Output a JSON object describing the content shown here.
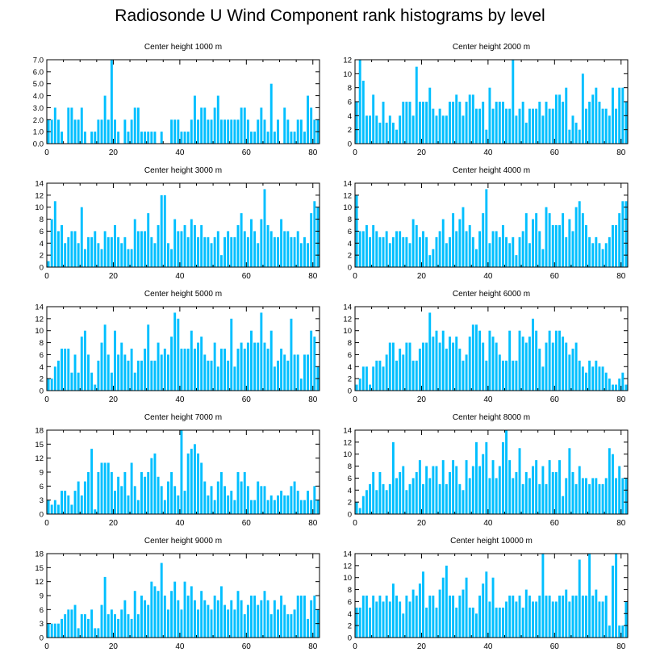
{
  "title": "Radiosonde U Wind Component rank histograms by level",
  "colors": {
    "bar": "#00bfff",
    "axis": "#000000",
    "background": "#ffffff"
  },
  "chart_data": [
    {
      "type": "bar",
      "title": "Center height 1000 m",
      "xticks": [
        0,
        20,
        40,
        60,
        80
      ],
      "xlim": [
        0,
        82
      ],
      "ylim": [
        0,
        7
      ],
      "yticks": [
        0,
        1,
        2,
        3,
        4,
        5,
        6,
        7
      ],
      "ytick_labels": [
        "0.0",
        "1.0",
        "2.0",
        "3.0",
        "4.0",
        "5.0",
        "6.0",
        "7.0"
      ],
      "values": [
        2,
        2,
        3,
        2,
        1,
        0,
        3,
        3,
        2,
        2,
        3,
        1,
        0,
        1,
        1,
        2,
        2,
        4,
        2,
        7,
        2,
        1,
        0,
        2,
        1,
        2,
        3,
        3,
        1,
        1,
        1,
        1,
        1,
        0,
        1,
        0,
        0,
        2,
        2,
        2,
        1,
        1,
        1,
        2,
        4,
        2,
        3,
        3,
        2,
        2,
        3,
        4,
        2,
        2,
        2,
        2,
        2,
        2,
        3,
        3,
        2,
        1,
        1,
        2,
        3,
        2,
        1,
        5,
        1,
        2,
        0,
        3,
        2,
        1,
        1,
        2,
        2,
        1,
        4,
        3,
        2,
        2
      ]
    },
    {
      "type": "bar",
      "title": "Center height 2000 m",
      "xticks": [
        0,
        20,
        40,
        60,
        80
      ],
      "xlim": [
        0,
        82
      ],
      "ylim": [
        0,
        12
      ],
      "yticks": [
        0,
        2,
        4,
        6,
        8,
        10,
        12
      ],
      "ytick_labels": [
        "0",
        "2",
        "4",
        "6",
        "8",
        "10",
        "12"
      ],
      "values": [
        6,
        12,
        9,
        4,
        4,
        7,
        4,
        3,
        6,
        3,
        4,
        3,
        2,
        4,
        6,
        6,
        6,
        4,
        11,
        6,
        6,
        6,
        8,
        5,
        4,
        5,
        4,
        4,
        6,
        6,
        7,
        6,
        4,
        6,
        7,
        7,
        5,
        5,
        6,
        2,
        8,
        5,
        6,
        6,
        6,
        5,
        5,
        12,
        4,
        5,
        6,
        3,
        5,
        5,
        5,
        6,
        4,
        6,
        5,
        5,
        7,
        7,
        6,
        8,
        2,
        4,
        3,
        2,
        10,
        5,
        6,
        7,
        8,
        6,
        5,
        5,
        4,
        8,
        5,
        8,
        8,
        6
      ]
    },
    {
      "type": "bar",
      "title": "Center height 3000 m",
      "xticks": [
        0,
        20,
        40,
        60,
        80
      ],
      "xlim": [
        0,
        82
      ],
      "ylim": [
        0,
        14
      ],
      "yticks": [
        0,
        2,
        4,
        6,
        8,
        10,
        12,
        14
      ],
      "ytick_labels": [
        "0",
        "2",
        "4",
        "6",
        "8",
        "10",
        "12",
        "14"
      ],
      "values": [
        1,
        8,
        11,
        6,
        7,
        4,
        5,
        6,
        6,
        4,
        10,
        3,
        5,
        5,
        6,
        4,
        3,
        6,
        5,
        5,
        7,
        5,
        4,
        5,
        3,
        3,
        8,
        6,
        6,
        6,
        9,
        5,
        4,
        7,
        12,
        12,
        4,
        3,
        8,
        6,
        6,
        7,
        5,
        8,
        7,
        5,
        7,
        5,
        5,
        4,
        5,
        6,
        2,
        5,
        6,
        5,
        5,
        7,
        9,
        6,
        5,
        8,
        6,
        4,
        8,
        13,
        7,
        6,
        5,
        5,
        8,
        6,
        6,
        5,
        5,
        6,
        4,
        5,
        4,
        9,
        11,
        10
      ]
    },
    {
      "type": "bar",
      "title": "Center height 4000 m",
      "xticks": [
        0,
        20,
        40,
        60,
        80
      ],
      "xlim": [
        0,
        82
      ],
      "ylim": [
        0,
        14
      ],
      "yticks": [
        0,
        2,
        4,
        6,
        8,
        10,
        12,
        14
      ],
      "ytick_labels": [
        "0",
        "2",
        "4",
        "6",
        "8",
        "10",
        "12",
        "14"
      ],
      "values": [
        12,
        6,
        6,
        7,
        5,
        7,
        6,
        5,
        5,
        6,
        4,
        5,
        6,
        6,
        5,
        5,
        4,
        8,
        7,
        5,
        6,
        5,
        2,
        3,
        5,
        6,
        8,
        4,
        5,
        9,
        6,
        8,
        10,
        6,
        7,
        5,
        3,
        6,
        9,
        13,
        4,
        6,
        6,
        5,
        7,
        5,
        4,
        5,
        2,
        5,
        6,
        9,
        4,
        8,
        9,
        6,
        3,
        10,
        9,
        7,
        7,
        7,
        9,
        5,
        8,
        6,
        10,
        11,
        9,
        7,
        5,
        4,
        5,
        4,
        3,
        4,
        5,
        7,
        7,
        9,
        11,
        11
      ]
    },
    {
      "type": "bar",
      "title": "Center height 5000 m",
      "xticks": [
        0,
        20,
        40,
        60,
        80
      ],
      "xlim": [
        0,
        82
      ],
      "ylim": [
        0,
        14
      ],
      "yticks": [
        0,
        2,
        4,
        6,
        8,
        10,
        12,
        14
      ],
      "ytick_labels": [
        "0",
        "2",
        "4",
        "6",
        "8",
        "10",
        "12",
        "14"
      ],
      "values": [
        2,
        2,
        4,
        5,
        7,
        7,
        7,
        3,
        6,
        3,
        9,
        10,
        6,
        3,
        1,
        5,
        8,
        11,
        6,
        3,
        10,
        6,
        8,
        6,
        5,
        7,
        3,
        5,
        5,
        7,
        11,
        5,
        5,
        8,
        6,
        7,
        6,
        9,
        13,
        12,
        7,
        7,
        7,
        10,
        7,
        8,
        9,
        6,
        5,
        5,
        8,
        4,
        7,
        7,
        5,
        12,
        4,
        7,
        8,
        7,
        8,
        10,
        8,
        8,
        13,
        8,
        7,
        10,
        4,
        5,
        7,
        6,
        5,
        12,
        6,
        6,
        2,
        6,
        6,
        10,
        9,
        4
      ]
    },
    {
      "type": "bar",
      "title": "Center height 6000 m",
      "xticks": [
        0,
        20,
        40,
        60,
        80
      ],
      "xlim": [
        0,
        82
      ],
      "ylim": [
        0,
        14
      ],
      "yticks": [
        0,
        2,
        4,
        6,
        8,
        10,
        12,
        14
      ],
      "ytick_labels": [
        "0",
        "2",
        "4",
        "6",
        "8",
        "10",
        "12",
        "14"
      ],
      "values": [
        1,
        2,
        4,
        4,
        1,
        4,
        5,
        5,
        4,
        6,
        8,
        8,
        5,
        7,
        6,
        8,
        8,
        5,
        5,
        7,
        8,
        8,
        13,
        9,
        10,
        8,
        10,
        7,
        9,
        8,
        9,
        7,
        5,
        6,
        9,
        11,
        11,
        10,
        8,
        5,
        10,
        9,
        8,
        6,
        5,
        5,
        10,
        5,
        5,
        10,
        9,
        8,
        9,
        12,
        10,
        7,
        4,
        8,
        10,
        8,
        10,
        10,
        9,
        8,
        6,
        7,
        8,
        5,
        4,
        3,
        5,
        4,
        5,
        4,
        4,
        3,
        2,
        1,
        1,
        2,
        3,
        1
      ]
    },
    {
      "type": "bar",
      "title": "Center height 7000 m",
      "xticks": [
        0,
        20,
        40,
        60,
        80
      ],
      "xlim": [
        0,
        82
      ],
      "ylim": [
        0,
        18
      ],
      "yticks": [
        0,
        3,
        6,
        9,
        12,
        15,
        18
      ],
      "ytick_labels": [
        "0",
        "3",
        "6",
        "9",
        "12",
        "15",
        "18"
      ],
      "values": [
        3,
        2,
        3,
        2,
        5,
        5,
        4,
        2,
        5,
        7,
        4,
        7,
        9,
        14,
        1,
        9,
        11,
        11,
        11,
        9,
        5,
        8,
        6,
        9,
        4,
        11,
        6,
        3,
        9,
        8,
        9,
        12,
        13,
        8,
        6,
        3,
        7,
        9,
        6,
        4,
        18,
        5,
        13,
        14,
        15,
        13,
        11,
        7,
        4,
        6,
        3,
        7,
        9,
        6,
        4,
        5,
        3,
        9,
        7,
        9,
        6,
        3,
        3,
        7,
        6,
        6,
        3,
        4,
        3,
        4,
        5,
        4,
        4,
        6,
        7,
        5,
        3,
        3,
        5,
        3,
        6,
        3
      ]
    },
    {
      "type": "bar",
      "title": "Center height 8000 m",
      "xticks": [
        0,
        20,
        40,
        60,
        80
      ],
      "xlim": [
        0,
        82
      ],
      "ylim": [
        0,
        14
      ],
      "yticks": [
        0,
        2,
        4,
        6,
        8,
        10,
        12,
        14
      ],
      "ytick_labels": [
        "0",
        "2",
        "4",
        "6",
        "8",
        "10",
        "12",
        "14"
      ],
      "values": [
        2,
        1,
        3,
        4,
        5,
        7,
        4,
        7,
        5,
        4,
        5,
        12,
        6,
        7,
        8,
        4,
        5,
        6,
        7,
        9,
        5,
        8,
        6,
        8,
        8,
        5,
        9,
        5,
        7,
        9,
        8,
        5,
        4,
        9,
        6,
        8,
        12,
        8,
        10,
        12,
        6,
        9,
        6,
        8,
        12,
        14,
        9,
        6,
        7,
        11,
        5,
        7,
        6,
        8,
        9,
        5,
        8,
        5,
        9,
        7,
        7,
        9,
        3,
        6,
        11,
        7,
        5,
        8,
        6,
        6,
        5,
        6,
        6,
        5,
        5,
        6,
        11,
        10,
        6,
        8,
        6,
        6
      ]
    },
    {
      "type": "bar",
      "title": "Center height 9000 m",
      "xticks": [
        0,
        20,
        40,
        60,
        80
      ],
      "xlim": [
        0,
        82
      ],
      "ylim": [
        0,
        18
      ],
      "yticks": [
        0,
        3,
        6,
        9,
        12,
        15,
        18
      ],
      "ytick_labels": [
        "0",
        "3",
        "6",
        "9",
        "12",
        "15",
        "18"
      ],
      "values": [
        3,
        3,
        3,
        3,
        4,
        5,
        6,
        6,
        7,
        2,
        5,
        5,
        4,
        6,
        2,
        2,
        7,
        13,
        5,
        6,
        5,
        4,
        6,
        8,
        5,
        4,
        10,
        5,
        9,
        8,
        7,
        12,
        11,
        10,
        16,
        9,
        6,
        10,
        12,
        8,
        6,
        12,
        9,
        11,
        8,
        6,
        10,
        8,
        7,
        6,
        9,
        8,
        11,
        7,
        6,
        8,
        6,
        10,
        8,
        5,
        7,
        9,
        9,
        7,
        8,
        10,
        8,
        5,
        8,
        6,
        9,
        7,
        5,
        5,
        6,
        9,
        9,
        9,
        4,
        8,
        9,
        6
      ]
    },
    {
      "type": "bar",
      "title": "Center height 10000 m",
      "xticks": [
        0,
        20,
        40,
        60,
        80
      ],
      "xlim": [
        0,
        82
      ],
      "ylim": [
        0,
        14
      ],
      "yticks": [
        0,
        2,
        4,
        6,
        8,
        10,
        12,
        14
      ],
      "ytick_labels": [
        "0",
        "2",
        "4",
        "6",
        "8",
        "10",
        "12",
        "14"
      ],
      "values": [
        5,
        5,
        7,
        7,
        5,
        7,
        6,
        7,
        6,
        7,
        6,
        9,
        7,
        6,
        4,
        7,
        6,
        8,
        7,
        9,
        11,
        5,
        7,
        7,
        5,
        8,
        10,
        12,
        7,
        7,
        5,
        7,
        8,
        10,
        5,
        5,
        4,
        7,
        9,
        11,
        6,
        10,
        5,
        5,
        5,
        6,
        7,
        7,
        6,
        7,
        5,
        8,
        7,
        6,
        6,
        7,
        14,
        7,
        7,
        6,
        6,
        7,
        7,
        8,
        6,
        7,
        7,
        13,
        7,
        7,
        14,
        7,
        8,
        6,
        6,
        7,
        2,
        12,
        14,
        2,
        2,
        6
      ]
    }
  ]
}
